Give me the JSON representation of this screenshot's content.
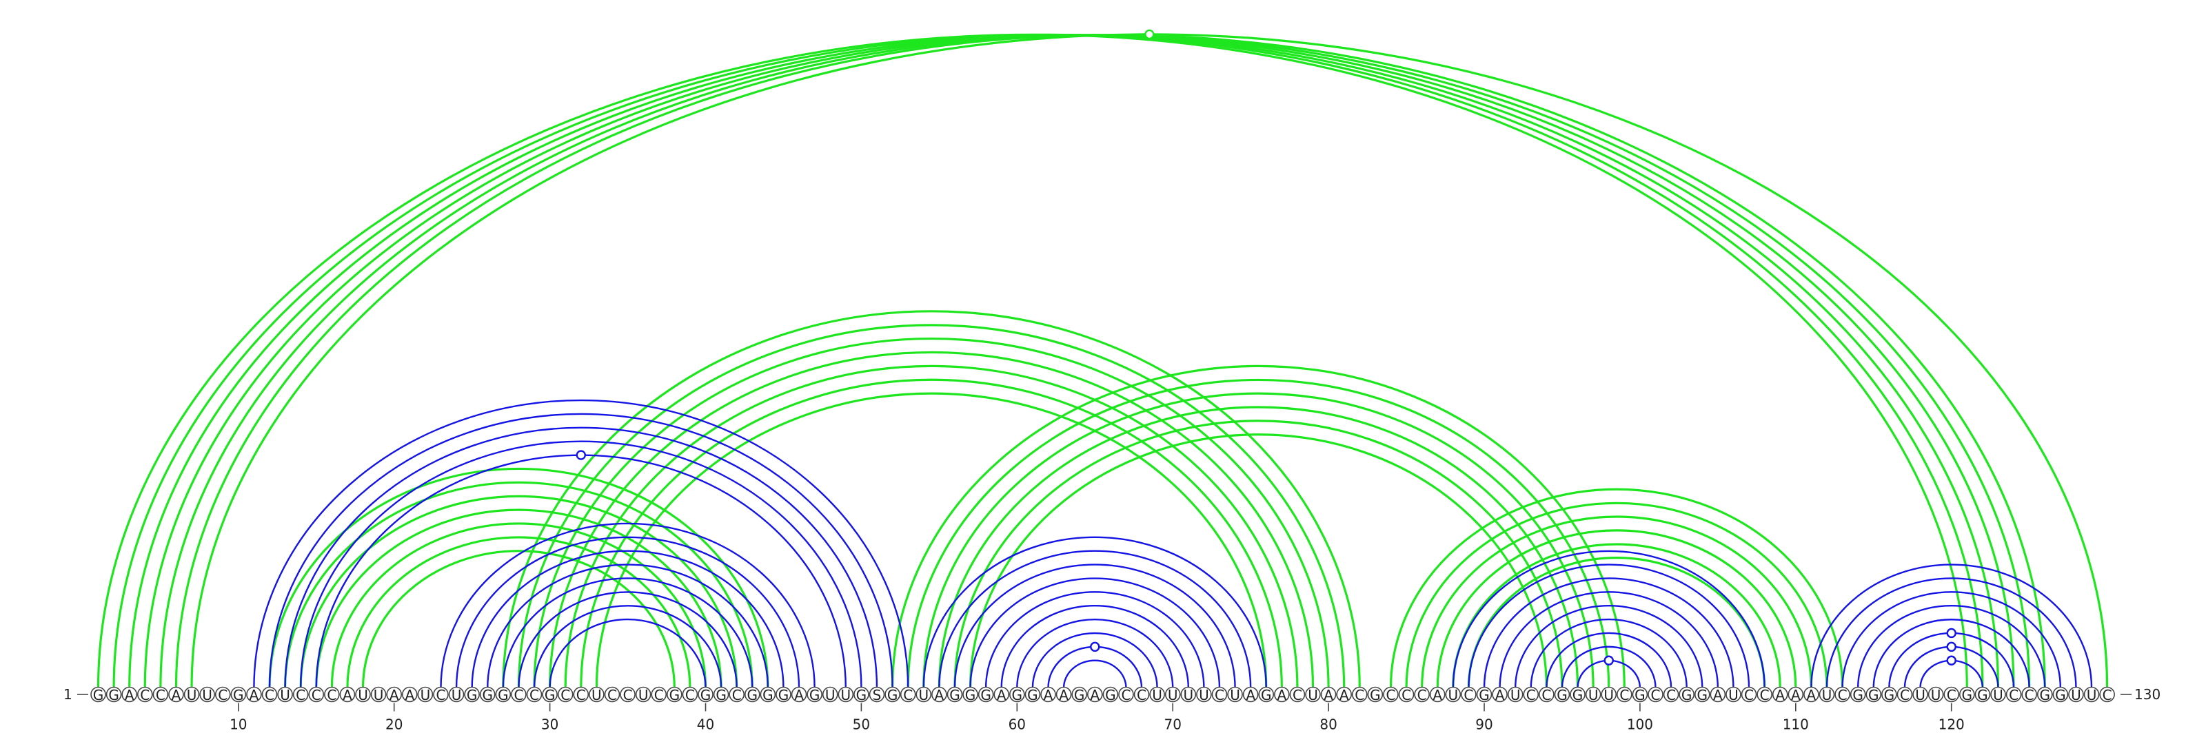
{
  "sequence": "GGACCAUUCGACUCCCAUUAAUCUGGGCCGCCUCCUCGCGGCGGGAGUUGSGCUAGGGAGGAAGAGCCUUUUCUAGACUAACGCCCAUCGAUCCGGUUCGCCGGAUCCAAAUCGGGCUUCGGUCCGGUUC",
  "start_label": "1",
  "end_label": "130",
  "ticks": [
    {
      "pos": 10,
      "label": "10"
    },
    {
      "pos": 20,
      "label": "20"
    },
    {
      "pos": 30,
      "label": "30"
    },
    {
      "pos": 40,
      "label": "40"
    },
    {
      "pos": 50,
      "label": "50"
    },
    {
      "pos": 60,
      "label": "60"
    },
    {
      "pos": 70,
      "label": "70"
    },
    {
      "pos": 80,
      "label": "80"
    },
    {
      "pos": 90,
      "label": "90"
    },
    {
      "pos": 100,
      "label": "100"
    },
    {
      "pos": 110,
      "label": "110"
    },
    {
      "pos": 120,
      "label": "120"
    }
  ],
  "colors": {
    "nested": "#1414e6",
    "pseudoknot": "#1ee61e"
  },
  "blue_pairs": [
    [
      30,
      40
    ],
    [
      29,
      41
    ],
    [
      28,
      42
    ],
    [
      27,
      43
    ],
    [
      26,
      44
    ],
    [
      25,
      45
    ],
    [
      24,
      46
    ],
    [
      23,
      47
    ],
    [
      15,
      49
    ],
    [
      14,
      50
    ],
    [
      13,
      51
    ],
    [
      12,
      52
    ],
    [
      11,
      53
    ],
    [
      63,
      67
    ],
    [
      62,
      68
    ],
    [
      61,
      69
    ],
    [
      60,
      70
    ],
    [
      59,
      71
    ],
    [
      58,
      72
    ],
    [
      57,
      73
    ],
    [
      56,
      74
    ],
    [
      55,
      75
    ],
    [
      54,
      76
    ],
    [
      96,
      100
    ],
    [
      95,
      101
    ],
    [
      94,
      102
    ],
    [
      93,
      103
    ],
    [
      92,
      104
    ],
    [
      91,
      105
    ],
    [
      90,
      106
    ],
    [
      89,
      107
    ],
    [
      88,
      108
    ],
    [
      118,
      122
    ],
    [
      117,
      123
    ],
    [
      116,
      124
    ],
    [
      115,
      125
    ],
    [
      114,
      126
    ],
    [
      113,
      127
    ],
    [
      112,
      128
    ],
    [
      111,
      129
    ]
  ],
  "green_pairs": [
    [
      1,
      121
    ],
    [
      2,
      122
    ],
    [
      3,
      123
    ],
    [
      4,
      124
    ],
    [
      5,
      125
    ],
    [
      6,
      126
    ],
    [
      7,
      130
    ],
    [
      12,
      44
    ],
    [
      13,
      43
    ],
    [
      14,
      42
    ],
    [
      15,
      41
    ],
    [
      16,
      40
    ],
    [
      17,
      39
    ],
    [
      18,
      38
    ],
    [
      27,
      82
    ],
    [
      28,
      81
    ],
    [
      29,
      80
    ],
    [
      30,
      79
    ],
    [
      31,
      78
    ],
    [
      32,
      77
    ],
    [
      33,
      76
    ],
    [
      52,
      99
    ],
    [
      53,
      98
    ],
    [
      54,
      97
    ],
    [
      55,
      96
    ],
    [
      56,
      95
    ],
    [
      57,
      94
    ],
    [
      84,
      113
    ],
    [
      85,
      112
    ],
    [
      86,
      111
    ],
    [
      87,
      110
    ],
    [
      88,
      109
    ],
    [
      89,
      108
    ]
  ],
  "markers": [
    {
      "between": [
        7,
        130
      ],
      "color": "pseudoknot"
    },
    {
      "between": [
        15,
        49
      ],
      "color": "nested"
    },
    {
      "between": [
        62,
        68
      ],
      "color": "nested"
    },
    {
      "between": [
        96,
        100
      ],
      "color": "nested"
    },
    {
      "between": [
        118,
        122
      ],
      "color": "nested"
    },
    {
      "between": [
        117,
        123
      ],
      "color": "nested"
    },
    {
      "between": [
        116,
        124
      ],
      "color": "nested"
    }
  ]
}
